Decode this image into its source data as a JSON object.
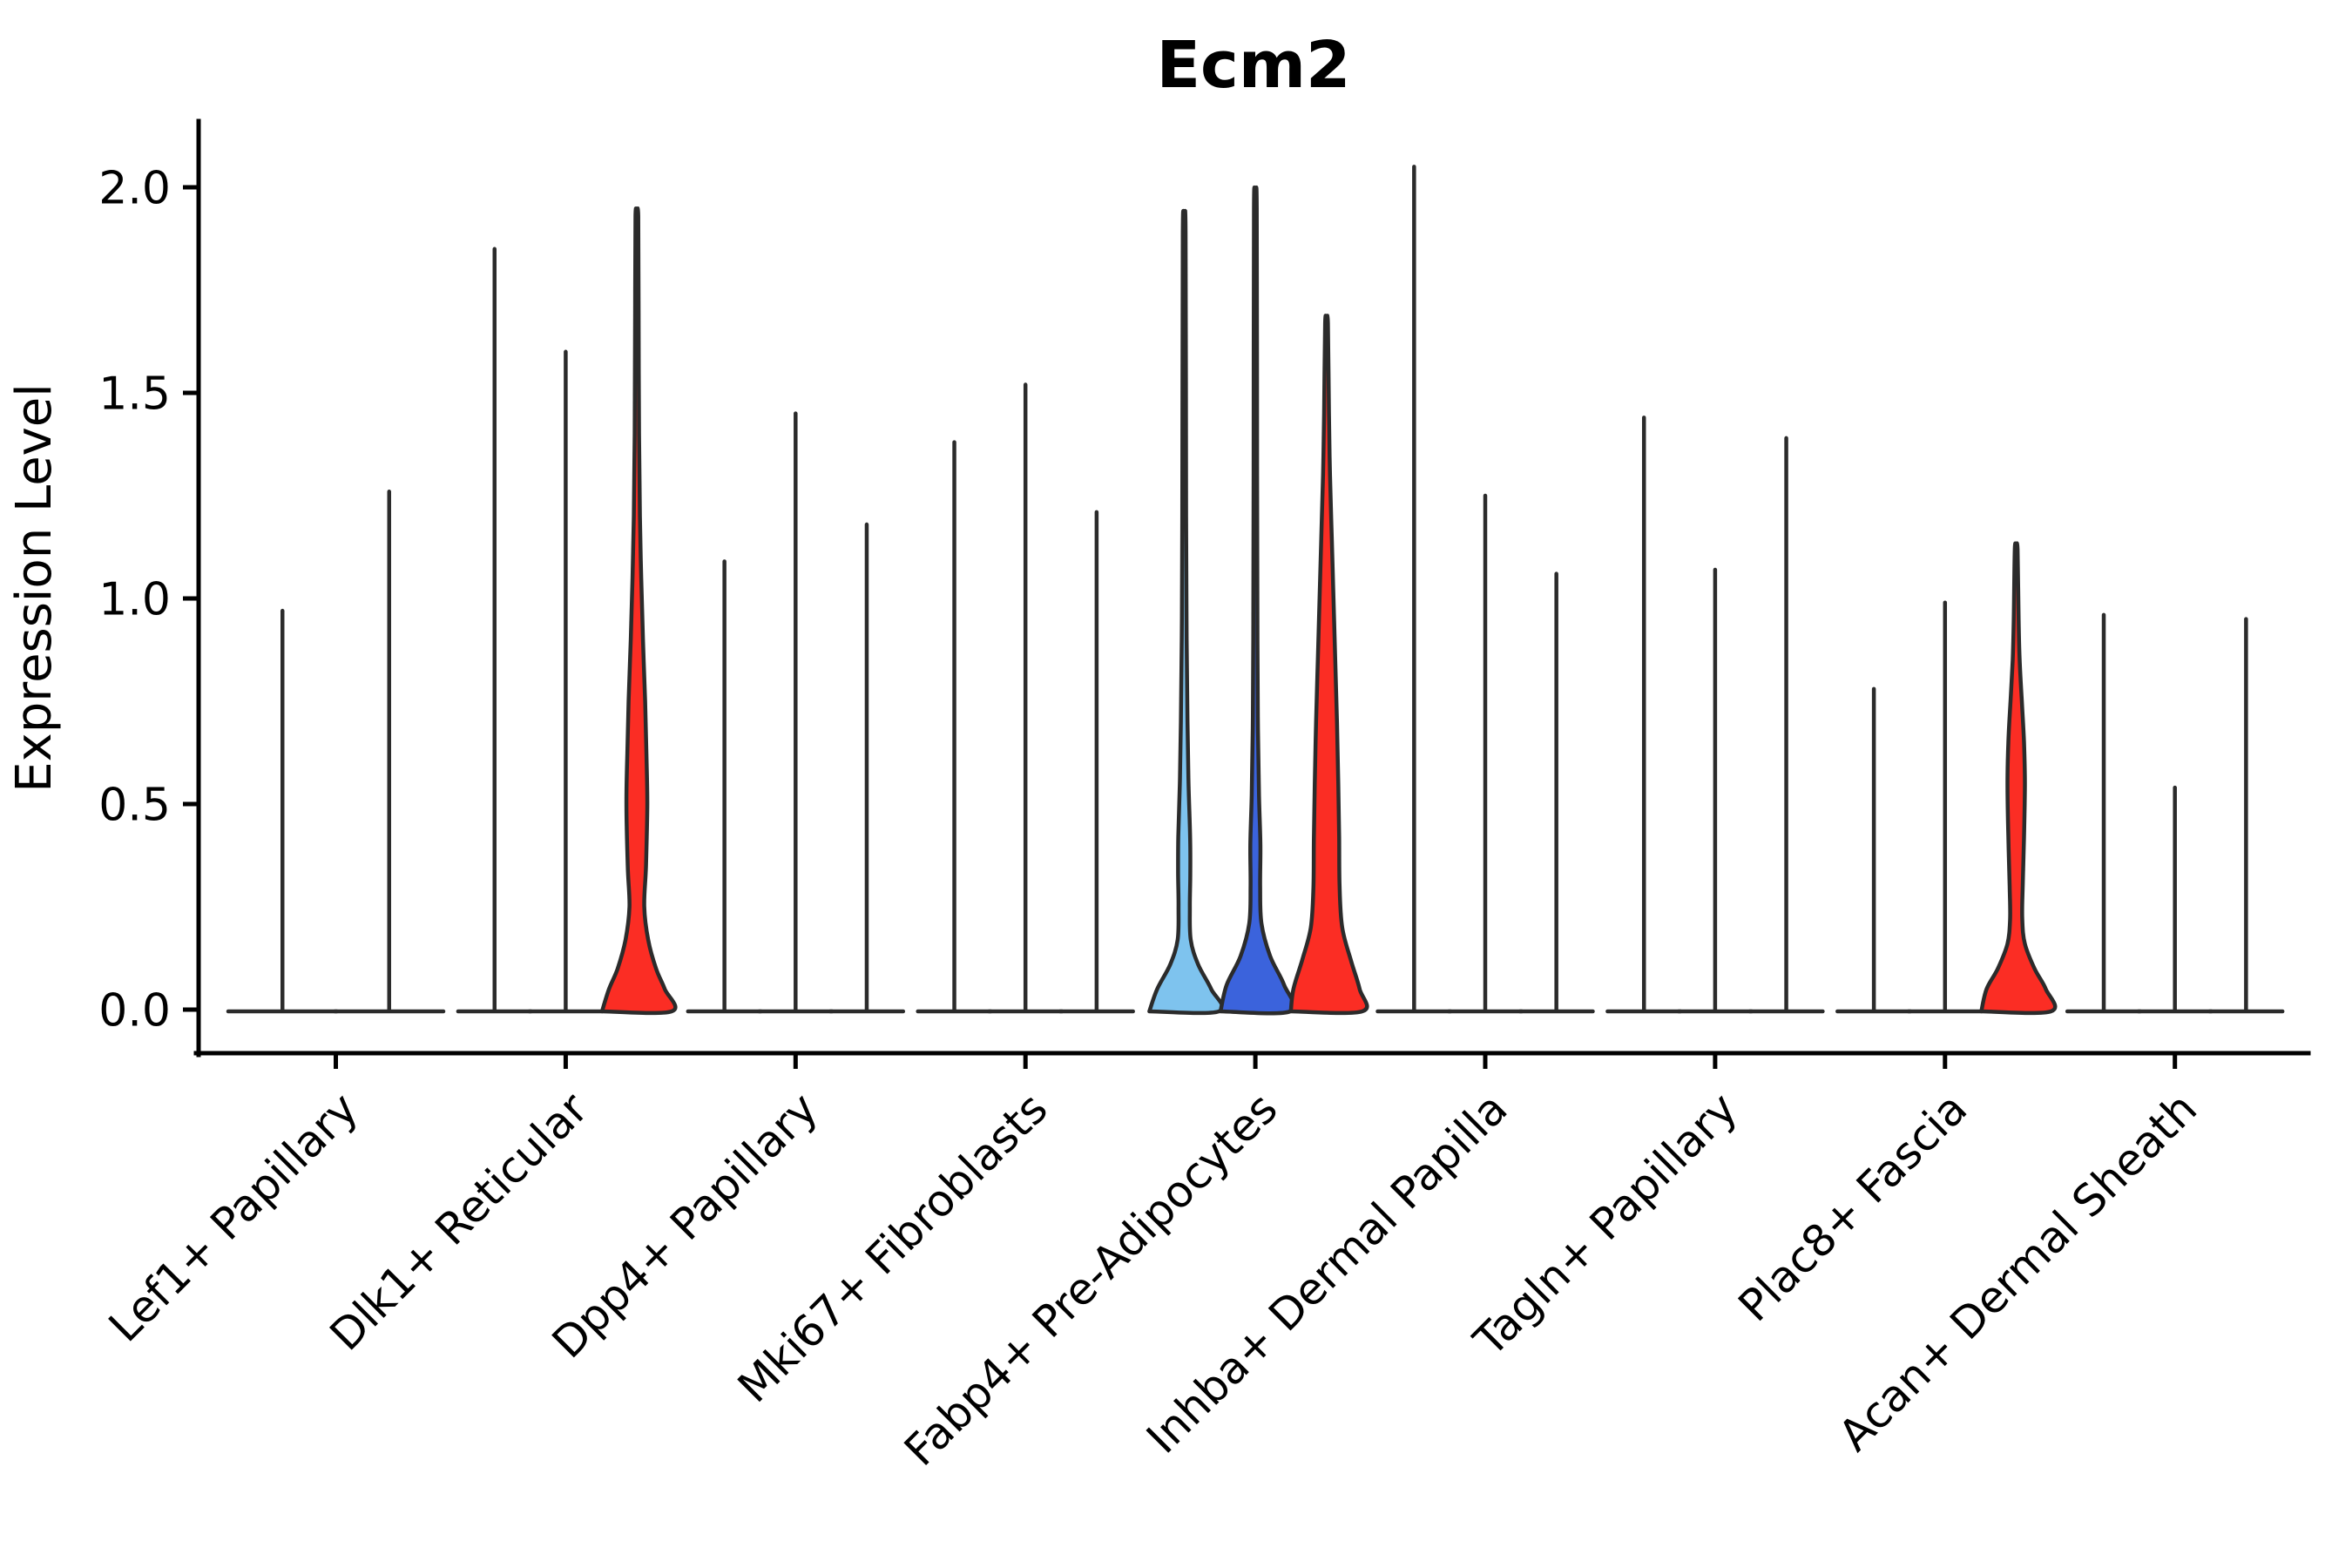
{
  "title": "Ecm2",
  "y_axis": {
    "label": "Expression Level",
    "tick_labels": [
      "0.0",
      "0.5",
      "1.0",
      "1.5",
      "2.0"
    ]
  },
  "chart_data": {
    "type": "violin",
    "title": "Ecm2",
    "xlabel": "",
    "ylabel": "Expression Level",
    "ylim": [
      0,
      2.1
    ],
    "yticks": [
      0,
      0.5,
      1.0,
      1.5,
      2.0
    ],
    "ytick_labels": [
      "0.0",
      "0.5",
      "1.0",
      "1.5",
      "2.0"
    ],
    "grid": false,
    "legend": null,
    "outline_color": "#2b2b2b",
    "colors": {
      "highlight_red": "#FB2D24",
      "light_blue": "#7EC3EE",
      "dark_blue": "#3B63DC"
    },
    "groups": [
      {
        "label": "Lef1+ Papillary",
        "violins": [
          {
            "max": 0.97
          },
          {
            "max": 1.26
          }
        ]
      },
      {
        "label": "Dlk1+ Reticular",
        "violins": [
          {
            "max": 1.85
          },
          {
            "max": 1.6
          },
          {
            "max": 1.93,
            "fill": "highlight_red",
            "profile": [
              [
                0,
                40
              ],
              [
                0.05,
                32
              ],
              [
                0.1,
                22
              ],
              [
                0.17,
                13
              ],
              [
                0.25,
                8.5
              ],
              [
                0.35,
                10.5
              ],
              [
                0.5,
                12
              ],
              [
                0.62,
                11
              ],
              [
                0.75,
                9.5
              ],
              [
                0.9,
                7
              ],
              [
                1.05,
                5
              ],
              [
                1.2,
                3.5
              ],
              [
                1.4,
                2.5
              ],
              [
                1.7,
                2
              ],
              [
                1.93,
                1.6
              ]
            ]
          }
        ]
      },
      {
        "label": "Dpp4+ Papillary",
        "violins": [
          {
            "max": 1.09
          },
          {
            "max": 1.45
          },
          {
            "max": 1.18
          }
        ]
      },
      {
        "label": "Mki67+ Fibroblasts",
        "violins": [
          {
            "max": 1.38
          },
          {
            "max": 1.52
          },
          {
            "max": 1.21
          }
        ]
      },
      {
        "label": "Fabp4+ Pre-Adipocytes",
        "violins": [
          {
            "max": 1.89,
            "fill": "light_blue",
            "profile": [
              [
                0,
                40
              ],
              [
                0.05,
                31
              ],
              [
                0.11,
                16
              ],
              [
                0.17,
                7.5
              ],
              [
                0.25,
                6.5
              ],
              [
                0.33,
                7
              ],
              [
                0.42,
                6.8
              ],
              [
                0.55,
                5
              ],
              [
                0.7,
                3.8
              ],
              [
                0.9,
                2.8
              ],
              [
                1.2,
                2.2
              ],
              [
                1.89,
                1.6
              ]
            ]
          },
          {
            "max": 1.95,
            "fill": "dark_blue",
            "profile": [
              [
                0,
                40
              ],
              [
                0.06,
                33
              ],
              [
                0.13,
                17
              ],
              [
                0.21,
                7
              ],
              [
                0.3,
                5.5
              ],
              [
                0.4,
                5.8
              ],
              [
                0.52,
                4.2
              ],
              [
                0.68,
                3
              ],
              [
                0.9,
                2.4
              ],
              [
                1.3,
                2
              ],
              [
                1.95,
                1.6
              ]
            ]
          },
          {
            "max": 1.67,
            "fill": "highlight_red",
            "profile": [
              [
                0,
                41
              ],
              [
                0.05,
                38
              ],
              [
                0.12,
                28
              ],
              [
                0.2,
                18
              ],
              [
                0.3,
                15
              ],
              [
                0.42,
                14.5
              ],
              [
                0.55,
                13.5
              ],
              [
                0.7,
                12
              ],
              [
                0.85,
                10
              ],
              [
                1.0,
                8
              ],
              [
                1.15,
                6
              ],
              [
                1.3,
                4
              ],
              [
                1.45,
                2.8
              ],
              [
                1.67,
                1.6
              ]
            ]
          }
        ]
      },
      {
        "label": "Inhba+ Dermal Papilla",
        "violins": [
          {
            "max": 2.05
          },
          {
            "max": 1.25
          },
          {
            "max": 1.06
          }
        ]
      },
      {
        "label": "Tagln+ Papillary",
        "violins": [
          {
            "max": 1.44
          },
          {
            "max": 1.07
          },
          {
            "max": 1.39
          }
        ]
      },
      {
        "label": "Plac8+ Fascia",
        "violins": [
          {
            "max": 0.78
          },
          {
            "max": 0.99
          },
          {
            "max": 1.12,
            "fill": "highlight_red",
            "profile": [
              [
                0,
                40
              ],
              [
                0.05,
                34
              ],
              [
                0.1,
                21
              ],
              [
                0.16,
                10
              ],
              [
                0.22,
                7
              ],
              [
                0.3,
                7.5
              ],
              [
                0.42,
                9
              ],
              [
                0.55,
                10
              ],
              [
                0.65,
                9
              ],
              [
                0.75,
                6.5
              ],
              [
                0.85,
                4
              ],
              [
                0.95,
                2.8
              ],
              [
                1.12,
                1.6
              ]
            ]
          }
        ]
      },
      {
        "label": "Acan+ Dermal Sheath",
        "violins": [
          {
            "max": 0.96
          },
          {
            "max": 0.54
          },
          {
            "max": 0.95
          }
        ]
      }
    ]
  }
}
